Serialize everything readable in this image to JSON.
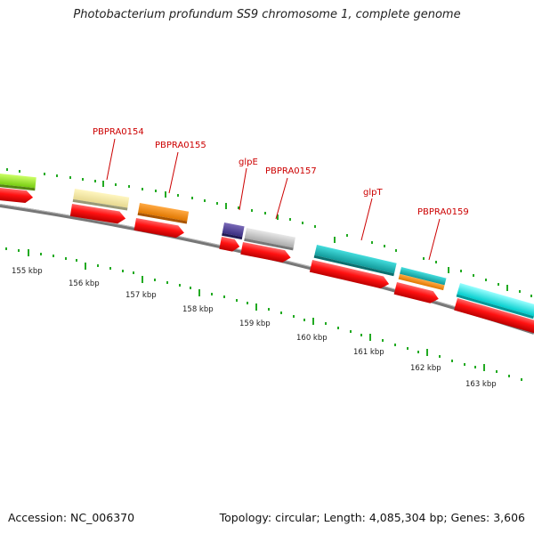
{
  "title": "Photobacterium profundum SS9 chromosome 1, complete genome",
  "footer": {
    "accession": "Accession: NC_006370",
    "summary": "Topology: circular; Length: 4,085,304 bp; Genes: 3,606"
  },
  "gene_labels": [
    "PBPRA0154",
    "PBPRA0155",
    "glpE",
    "PBPRA0157",
    "glpT",
    "PBPRA0159"
  ],
  "kbp_labels": [
    "155 kbp",
    "156 kbp",
    "157 kbp",
    "158 kbp",
    "159 kbp",
    "160 kbp",
    "161 kbp",
    "162 kbp",
    "163 kbp"
  ],
  "colors": {
    "backbone": "#808080",
    "cds_strand": "#ee1111",
    "tick": "#22aa22",
    "label": "#cc0000"
  }
}
